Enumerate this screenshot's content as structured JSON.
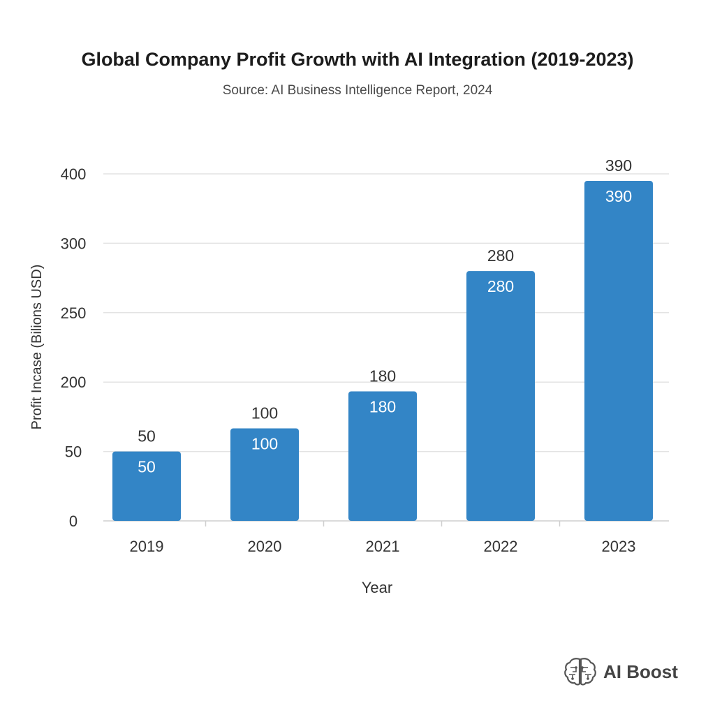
{
  "chart_data": {
    "type": "bar",
    "title": "Global Company Profit Growth with AI Integration (2019-2023)",
    "subtitle": "Source: AI Business Intelligence Report, 2024",
    "xlabel": "Year",
    "ylabel": "Profit Incase (Bilions USD)",
    "categories": [
      "2019",
      "2020",
      "2021",
      "2022",
      "2023"
    ],
    "values": [
      50,
      100,
      180,
      280,
      390
    ],
    "value_labels": [
      "50",
      "100",
      "180",
      "280",
      "390"
    ],
    "yticks": [
      "0",
      "50",
      "200",
      "250",
      "300",
      "400"
    ],
    "grid": true,
    "legend": "none",
    "colors": {
      "bar": "#3385c6",
      "grid": "#e3e3e3",
      "text": "#333333"
    }
  },
  "branding": {
    "label": "AI Boost",
    "icon": "brain-icon"
  }
}
